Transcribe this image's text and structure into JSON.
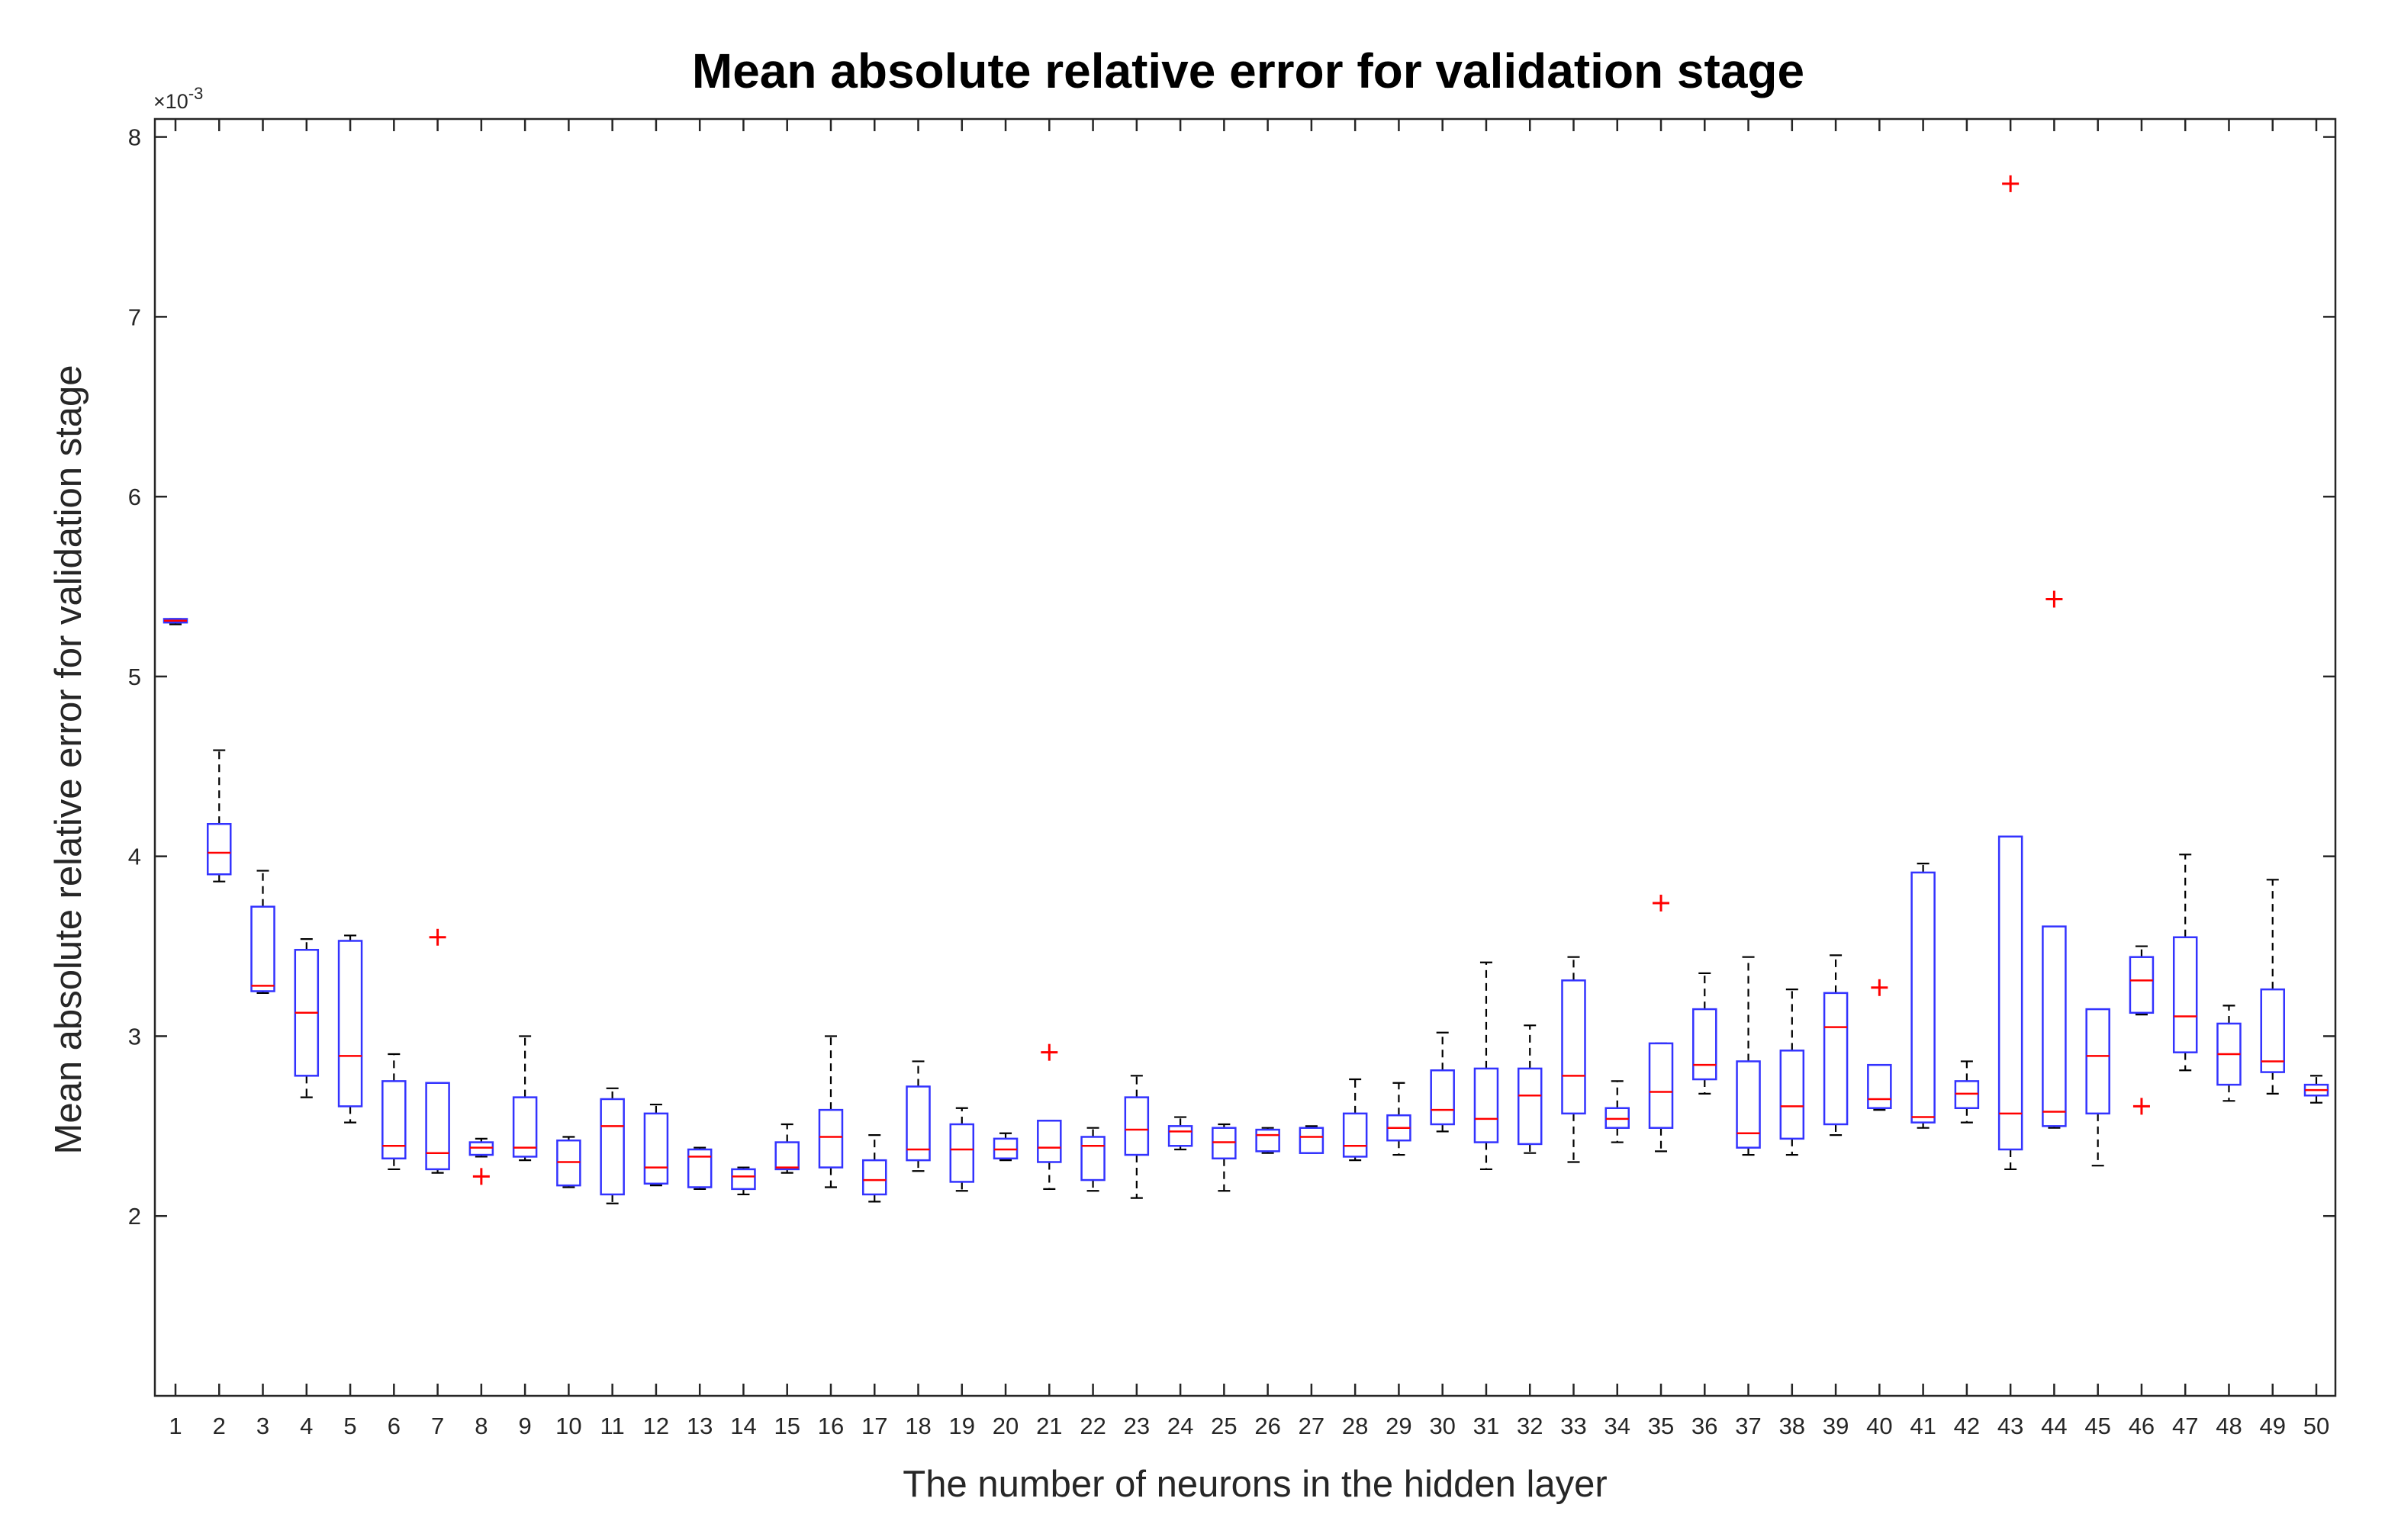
{
  "chart_data": {
    "type": "boxplot",
    "title": "Mean absolute relative error for validation stage",
    "xlabel": "The number of neurons in the hidden layer",
    "ylabel": "Mean absolute relative error for validation stage",
    "y_exponent": "×10-3",
    "y_exponent_base": "×10",
    "y_exponent_power": "-3",
    "ylim": [
      1.0,
      8.1
    ],
    "yticks": [
      "2",
      "3",
      "4",
      "5",
      "6",
      "7",
      "8"
    ],
    "ytick_values": [
      2,
      3,
      4,
      5,
      6,
      7,
      8
    ],
    "categories": [
      "1",
      "2",
      "3",
      "4",
      "5",
      "6",
      "7",
      "8",
      "9",
      "10",
      "11",
      "12",
      "13",
      "14",
      "15",
      "16",
      "17",
      "18",
      "19",
      "20",
      "21",
      "22",
      "23",
      "24",
      "25",
      "26",
      "27",
      "28",
      "29",
      "30",
      "31",
      "32",
      "33",
      "34",
      "35",
      "36",
      "37",
      "38",
      "39",
      "40",
      "41",
      "42",
      "43",
      "44",
      "45",
      "46",
      "47",
      "48",
      "49",
      "50"
    ],
    "box_color": "#3333ff",
    "median_color": "#ff0000",
    "outlier_color": "#ff0000",
    "whisker_color": "#000000",
    "boxes": [
      {
        "label": "1",
        "lower_whisker": 5.29,
        "q1": 5.3,
        "median": 5.31,
        "q3": 5.32,
        "upper_whisker": 5.32,
        "outliers": []
      },
      {
        "label": "2",
        "lower_whisker": 3.86,
        "q1": 3.9,
        "median": 4.02,
        "q3": 4.18,
        "upper_whisker": 4.59,
        "outliers": []
      },
      {
        "label": "3",
        "lower_whisker": 3.24,
        "q1": 3.25,
        "median": 3.28,
        "q3": 3.72,
        "upper_whisker": 3.92,
        "outliers": []
      },
      {
        "label": "4",
        "lower_whisker": 2.66,
        "q1": 2.78,
        "median": 3.13,
        "q3": 3.48,
        "upper_whisker": 3.54,
        "outliers": []
      },
      {
        "label": "5",
        "lower_whisker": 2.52,
        "q1": 2.61,
        "median": 2.89,
        "q3": 3.53,
        "upper_whisker": 3.56,
        "outliers": []
      },
      {
        "label": "6",
        "lower_whisker": 2.26,
        "q1": 2.32,
        "median": 2.39,
        "q3": 2.75,
        "upper_whisker": 2.9,
        "outliers": []
      },
      {
        "label": "7",
        "lower_whisker": 2.24,
        "q1": 2.26,
        "median": 2.35,
        "q3": 2.74,
        "upper_whisker": 2.74,
        "outliers": [
          3.55
        ]
      },
      {
        "label": "8",
        "lower_whisker": 2.33,
        "q1": 2.34,
        "median": 2.38,
        "q3": 2.41,
        "upper_whisker": 2.43,
        "outliers": [
          2.22
        ]
      },
      {
        "label": "9",
        "lower_whisker": 2.31,
        "q1": 2.33,
        "median": 2.38,
        "q3": 2.66,
        "upper_whisker": 3.0,
        "outliers": []
      },
      {
        "label": "10",
        "lower_whisker": 2.16,
        "q1": 2.17,
        "median": 2.3,
        "q3": 2.42,
        "upper_whisker": 2.44,
        "outliers": []
      },
      {
        "label": "11",
        "lower_whisker": 2.07,
        "q1": 2.12,
        "median": 2.5,
        "q3": 2.65,
        "upper_whisker": 2.71,
        "outliers": []
      },
      {
        "label": "12",
        "lower_whisker": 2.17,
        "q1": 2.18,
        "median": 2.27,
        "q3": 2.57,
        "upper_whisker": 2.62,
        "outliers": []
      },
      {
        "label": "13",
        "lower_whisker": 2.15,
        "q1": 2.16,
        "median": 2.33,
        "q3": 2.37,
        "upper_whisker": 2.38,
        "outliers": []
      },
      {
        "label": "14",
        "lower_whisker": 2.12,
        "q1": 2.15,
        "median": 2.22,
        "q3": 2.26,
        "upper_whisker": 2.27,
        "outliers": []
      },
      {
        "label": "15",
        "lower_whisker": 2.24,
        "q1": 2.26,
        "median": 2.27,
        "q3": 2.41,
        "upper_whisker": 2.51,
        "outliers": []
      },
      {
        "label": "16",
        "lower_whisker": 2.16,
        "q1": 2.27,
        "median": 2.44,
        "q3": 2.59,
        "upper_whisker": 3.0,
        "outliers": []
      },
      {
        "label": "17",
        "lower_whisker": 2.08,
        "q1": 2.12,
        "median": 2.2,
        "q3": 2.31,
        "upper_whisker": 2.45,
        "outliers": []
      },
      {
        "label": "18",
        "lower_whisker": 2.25,
        "q1": 2.31,
        "median": 2.37,
        "q3": 2.72,
        "upper_whisker": 2.86,
        "outliers": []
      },
      {
        "label": "19",
        "lower_whisker": 2.14,
        "q1": 2.19,
        "median": 2.37,
        "q3": 2.51,
        "upper_whisker": 2.6,
        "outliers": []
      },
      {
        "label": "20",
        "lower_whisker": 2.31,
        "q1": 2.32,
        "median": 2.37,
        "q3": 2.43,
        "upper_whisker": 2.46,
        "outliers": []
      },
      {
        "label": "21",
        "lower_whisker": 2.15,
        "q1": 2.3,
        "median": 2.38,
        "q3": 2.53,
        "upper_whisker": 2.53,
        "outliers": [
          2.91
        ]
      },
      {
        "label": "22",
        "lower_whisker": 2.14,
        "q1": 2.2,
        "median": 2.39,
        "q3": 2.44,
        "upper_whisker": 2.49,
        "outliers": []
      },
      {
        "label": "23",
        "lower_whisker": 2.1,
        "q1": 2.34,
        "median": 2.48,
        "q3": 2.66,
        "upper_whisker": 2.78,
        "outliers": []
      },
      {
        "label": "24",
        "lower_whisker": 2.37,
        "q1": 2.39,
        "median": 2.47,
        "q3": 2.5,
        "upper_whisker": 2.55,
        "outliers": []
      },
      {
        "label": "25",
        "lower_whisker": 2.14,
        "q1": 2.32,
        "median": 2.41,
        "q3": 2.49,
        "upper_whisker": 2.51,
        "outliers": []
      },
      {
        "label": "26",
        "lower_whisker": 2.35,
        "q1": 2.36,
        "median": 2.45,
        "q3": 2.48,
        "upper_whisker": 2.49,
        "outliers": []
      },
      {
        "label": "27",
        "lower_whisker": 2.35,
        "q1": 2.35,
        "median": 2.44,
        "q3": 2.49,
        "upper_whisker": 2.5,
        "outliers": []
      },
      {
        "label": "28",
        "lower_whisker": 2.31,
        "q1": 2.33,
        "median": 2.39,
        "q3": 2.57,
        "upper_whisker": 2.76,
        "outliers": []
      },
      {
        "label": "29",
        "lower_whisker": 2.34,
        "q1": 2.42,
        "median": 2.49,
        "q3": 2.56,
        "upper_whisker": 2.74,
        "outliers": []
      },
      {
        "label": "30",
        "lower_whisker": 2.47,
        "q1": 2.51,
        "median": 2.59,
        "q3": 2.81,
        "upper_whisker": 3.02,
        "outliers": []
      },
      {
        "label": "31",
        "lower_whisker": 2.26,
        "q1": 2.41,
        "median": 2.54,
        "q3": 2.82,
        "upper_whisker": 3.41,
        "outliers": []
      },
      {
        "label": "32",
        "lower_whisker": 2.35,
        "q1": 2.4,
        "median": 2.67,
        "q3": 2.82,
        "upper_whisker": 3.06,
        "outliers": []
      },
      {
        "label": "33",
        "lower_whisker": 2.3,
        "q1": 2.57,
        "median": 2.78,
        "q3": 3.31,
        "upper_whisker": 3.44,
        "outliers": []
      },
      {
        "label": "34",
        "lower_whisker": 2.41,
        "q1": 2.49,
        "median": 2.54,
        "q3": 2.6,
        "upper_whisker": 2.75,
        "outliers": []
      },
      {
        "label": "35",
        "lower_whisker": 2.36,
        "q1": 2.49,
        "median": 2.69,
        "q3": 2.96,
        "upper_whisker": 2.96,
        "outliers": [
          3.74
        ]
      },
      {
        "label": "36",
        "lower_whisker": 2.68,
        "q1": 2.76,
        "median": 2.84,
        "q3": 3.15,
        "upper_whisker": 3.35,
        "outliers": []
      },
      {
        "label": "37",
        "lower_whisker": 2.34,
        "q1": 2.38,
        "median": 2.46,
        "q3": 2.86,
        "upper_whisker": 3.44,
        "outliers": []
      },
      {
        "label": "38",
        "lower_whisker": 2.34,
        "q1": 2.43,
        "median": 2.61,
        "q3": 2.92,
        "upper_whisker": 3.26,
        "outliers": []
      },
      {
        "label": "39",
        "lower_whisker": 2.45,
        "q1": 2.51,
        "median": 3.05,
        "q3": 3.24,
        "upper_whisker": 3.45,
        "outliers": []
      },
      {
        "label": "40",
        "lower_whisker": 2.59,
        "q1": 2.6,
        "median": 2.65,
        "q3": 2.84,
        "upper_whisker": 2.84,
        "outliers": [
          3.27
        ]
      },
      {
        "label": "41",
        "lower_whisker": 2.49,
        "q1": 2.52,
        "median": 2.55,
        "q3": 3.91,
        "upper_whisker": 3.96,
        "outliers": []
      },
      {
        "label": "42",
        "lower_whisker": 2.52,
        "q1": 2.6,
        "median": 2.68,
        "q3": 2.75,
        "upper_whisker": 2.86,
        "outliers": []
      },
      {
        "label": "43",
        "lower_whisker": 2.26,
        "q1": 2.37,
        "median": 2.57,
        "q3": 4.11,
        "upper_whisker": 4.11,
        "outliers": [
          7.74
        ]
      },
      {
        "label": "44",
        "lower_whisker": 2.49,
        "q1": 2.5,
        "median": 2.58,
        "q3": 3.61,
        "upper_whisker": 3.61,
        "outliers": [
          5.43
        ]
      },
      {
        "label": "45",
        "lower_whisker": 2.28,
        "q1": 2.57,
        "median": 2.89,
        "q3": 3.15,
        "upper_whisker": 3.15,
        "outliers": []
      },
      {
        "label": "46",
        "lower_whisker": 3.12,
        "q1": 3.13,
        "median": 3.31,
        "q3": 3.44,
        "upper_whisker": 3.5,
        "outliers": [
          2.61
        ]
      },
      {
        "label": "47",
        "lower_whisker": 2.81,
        "q1": 2.91,
        "median": 3.11,
        "q3": 3.55,
        "upper_whisker": 4.01,
        "outliers": []
      },
      {
        "label": "48",
        "lower_whisker": 2.64,
        "q1": 2.73,
        "median": 2.9,
        "q3": 3.07,
        "upper_whisker": 3.17,
        "outliers": []
      },
      {
        "label": "49",
        "lower_whisker": 2.68,
        "q1": 2.8,
        "median": 2.86,
        "q3": 3.26,
        "upper_whisker": 3.87,
        "outliers": []
      },
      {
        "label": "50",
        "lower_whisker": 2.63,
        "q1": 2.67,
        "median": 2.7,
        "q3": 2.73,
        "upper_whisker": 2.78,
        "outliers": []
      }
    ]
  }
}
